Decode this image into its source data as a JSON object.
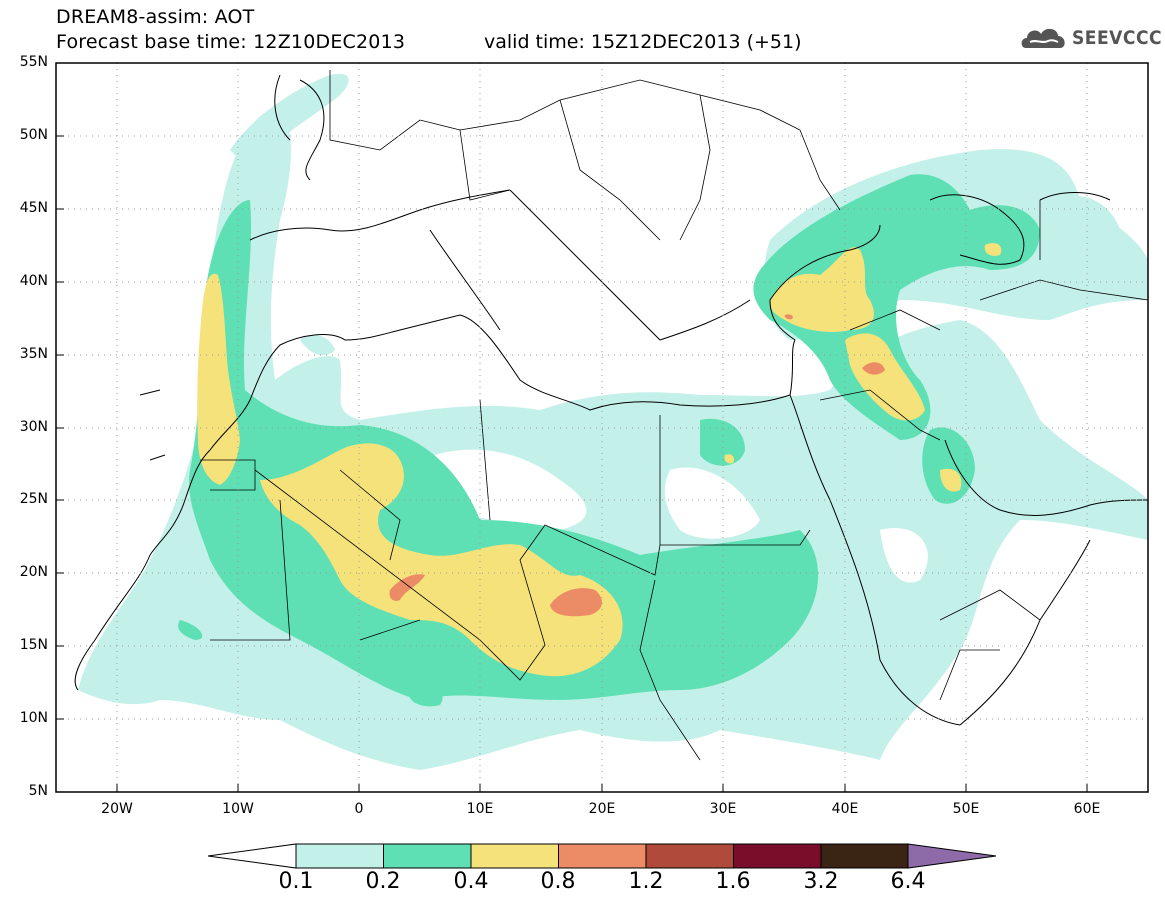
{
  "title": {
    "line1": "DREAM8-assim: AOT",
    "base": "Forecast base time: 12Z10DEC2013",
    "valid": "valid time: 15Z12DEC2013 (+51)"
  },
  "logo": {
    "text": "SEEVCCC",
    "icon": "cloud-icon"
  },
  "map": {
    "lat_labels": [
      "55N",
      "50N",
      "45N",
      "40N",
      "35N",
      "30N",
      "25N",
      "20N",
      "15N",
      "10N",
      "5N"
    ],
    "lon_labels": [
      "20W",
      "10W",
      "0",
      "10E",
      "20E",
      "30E",
      "40E",
      "50E",
      "60E"
    ],
    "lon_range": [
      -25,
      65
    ],
    "lat_range": [
      5,
      55
    ],
    "grid": "dotted"
  },
  "colorbar": {
    "labels": [
      "0.1",
      "0.2",
      "0.4",
      "0.8",
      "1.2",
      "1.6",
      "3.2",
      "6.4"
    ],
    "colors": [
      "#c3f0e8",
      "#5ee0b4",
      "#f5e27a",
      "#ec8c66",
      "#b04a3a",
      "#7a0e2a",
      "#3a2414",
      "#8e6aa8"
    ]
  }
}
